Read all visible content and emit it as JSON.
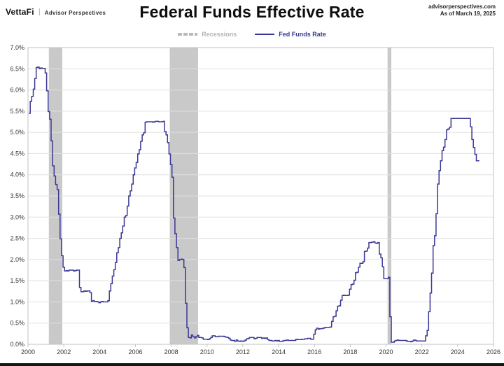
{
  "header": {
    "logo_primary": "VettaFi",
    "logo_secondary": "Advisor Perspectives",
    "title": "Federal Funds Effective Rate",
    "source_line1": "advisorperspectives.com",
    "source_line2": "As of March 19, 2025"
  },
  "legend": {
    "recessions_label": "Recessions",
    "series_label": "Fed Funds Rate"
  },
  "colors": {
    "line": "#3a3794",
    "recession_band": "#c9c9c9",
    "grid": "#e0e0e0",
    "frame": "#c2c2c2",
    "tick_text": "#333333",
    "legend_recession_text": "#b3b3b3",
    "legend_series_text": "#3a3794"
  },
  "chart_data": {
    "type": "line",
    "title": "Federal Funds Effective Rate",
    "xlabel": "",
    "ylabel": "",
    "unit": "%",
    "xlim": [
      2000,
      2026
    ],
    "ylim": [
      0,
      7
    ],
    "grid": true,
    "legend_position": "top-center",
    "x_ticks": [
      "2000",
      "2002",
      "2004",
      "2006",
      "2008",
      "2010",
      "2012",
      "2014",
      "2016",
      "2018",
      "2020",
      "2022",
      "2024",
      "2026"
    ],
    "y_ticks": [
      "7.0%",
      "6.5%",
      "6.0%",
      "5.5%",
      "5.0%",
      "4.5%",
      "4.0%",
      "3.5%",
      "3.0%",
      "2.5%",
      "2.0%",
      "1.5%",
      "1.0%",
      "0.5%",
      "0.0%"
    ],
    "recessions": [
      {
        "name": "2001 recession",
        "start": 2001.167,
        "end": 2001.917
      },
      {
        "name": "2008 recession",
        "start": 2007.917,
        "end": 2009.5
      },
      {
        "name": "2020 recession",
        "start": 2020.083,
        "end": 2020.292
      }
    ],
    "series": [
      {
        "name": "Fed Funds Rate",
        "frequency": "monthly",
        "style": "step",
        "years": [
          {
            "year": 2000,
            "monthly": [
              5.45,
              5.73,
              5.85,
              6.02,
              6.27,
              6.53,
              6.54,
              6.5,
              6.52,
              6.51,
              6.51,
              6.4
            ]
          },
          {
            "year": 2001,
            "monthly": [
              5.98,
              5.49,
              5.31,
              4.8,
              4.21,
              3.97,
              3.77,
              3.65,
              3.07,
              2.49,
              2.09,
              1.82
            ]
          },
          {
            "year": 2002,
            "monthly": [
              1.73,
              1.74,
              1.73,
              1.75,
              1.75,
              1.75,
              1.73,
              1.74,
              1.75,
              1.75,
              1.34,
              1.24
            ]
          },
          {
            "year": 2003,
            "monthly": [
              1.24,
              1.26,
              1.25,
              1.26,
              1.26,
              1.22,
              1.01,
              1.03,
              1.01,
              1.01,
              1.0,
              0.98
            ]
          },
          {
            "year": 2004,
            "monthly": [
              1.0,
              1.01,
              1.0,
              1.0,
              1.0,
              1.03,
              1.26,
              1.43,
              1.61,
              1.76,
              1.93,
              2.16
            ]
          },
          {
            "year": 2005,
            "monthly": [
              2.28,
              2.5,
              2.63,
              2.79,
              3.0,
              3.04,
              3.26,
              3.5,
              3.62,
              3.78,
              4.0,
              4.16
            ]
          },
          {
            "year": 2006,
            "monthly": [
              4.29,
              4.49,
              4.59,
              4.79,
              4.94,
              4.99,
              5.24,
              5.25,
              5.25,
              5.25,
              5.25,
              5.24
            ]
          },
          {
            "year": 2007,
            "monthly": [
              5.25,
              5.26,
              5.26,
              5.25,
              5.25,
              5.25,
              5.26,
              5.02,
              4.94,
              4.76,
              4.49,
              4.24
            ]
          },
          {
            "year": 2008,
            "monthly": [
              3.94,
              2.98,
              2.61,
              2.28,
              1.98,
              2.0,
              2.01,
              2.0,
              1.81,
              0.97,
              0.39,
              0.16
            ]
          },
          {
            "year": 2009,
            "monthly": [
              0.15,
              0.22,
              0.18,
              0.15,
              0.18,
              0.21,
              0.16,
              0.16,
              0.15,
              0.12,
              0.12,
              0.12
            ]
          },
          {
            "year": 2010,
            "monthly": [
              0.11,
              0.13,
              0.16,
              0.2,
              0.2,
              0.18,
              0.18,
              0.19,
              0.19,
              0.19,
              0.19,
              0.18
            ]
          },
          {
            "year": 2011,
            "monthly": [
              0.17,
              0.16,
              0.14,
              0.1,
              0.09,
              0.09,
              0.07,
              0.1,
              0.08,
              0.07,
              0.08,
              0.07
            ]
          },
          {
            "year": 2012,
            "monthly": [
              0.08,
              0.1,
              0.13,
              0.14,
              0.16,
              0.16,
              0.16,
              0.13,
              0.14,
              0.16,
              0.16,
              0.16
            ]
          },
          {
            "year": 2013,
            "monthly": [
              0.14,
              0.15,
              0.14,
              0.15,
              0.11,
              0.09,
              0.09,
              0.08,
              0.08,
              0.09,
              0.08,
              0.09
            ]
          },
          {
            "year": 2014,
            "monthly": [
              0.07,
              0.07,
              0.08,
              0.09,
              0.09,
              0.1,
              0.09,
              0.09,
              0.09,
              0.09,
              0.09,
              0.12
            ]
          },
          {
            "year": 2015,
            "monthly": [
              0.11,
              0.11,
              0.11,
              0.12,
              0.12,
              0.13,
              0.13,
              0.14,
              0.14,
              0.12,
              0.12,
              0.24
            ]
          },
          {
            "year": 2016,
            "monthly": [
              0.34,
              0.38,
              0.36,
              0.37,
              0.37,
              0.38,
              0.39,
              0.4,
              0.4,
              0.4,
              0.41,
              0.54
            ]
          },
          {
            "year": 2017,
            "monthly": [
              0.65,
              0.66,
              0.79,
              0.9,
              0.91,
              1.04,
              1.15,
              1.16,
              1.15,
              1.15,
              1.16,
              1.3
            ]
          },
          {
            "year": 2018,
            "monthly": [
              1.41,
              1.42,
              1.51,
              1.69,
              1.7,
              1.82,
              1.91,
              1.91,
              1.95,
              2.19,
              2.2,
              2.27
            ]
          },
          {
            "year": 2019,
            "monthly": [
              2.4,
              2.4,
              2.41,
              2.42,
              2.39,
              2.38,
              2.4,
              2.13,
              2.04,
              1.83,
              1.55,
              1.55
            ]
          },
          {
            "year": 2020,
            "monthly": [
              1.55,
              1.58,
              0.65,
              0.05,
              0.05,
              0.08,
              0.09,
              0.1,
              0.09,
              0.09,
              0.09,
              0.09
            ]
          },
          {
            "year": 2021,
            "monthly": [
              0.09,
              0.08,
              0.07,
              0.07,
              0.06,
              0.08,
              0.1,
              0.09,
              0.08,
              0.08,
              0.08,
              0.08
            ]
          },
          {
            "year": 2022,
            "monthly": [
              0.08,
              0.08,
              0.2,
              0.33,
              0.77,
              1.21,
              1.68,
              2.33,
              2.56,
              3.08,
              3.78,
              4.1
            ]
          },
          {
            "year": 2023,
            "monthly": [
              4.33,
              4.57,
              4.65,
              4.83,
              5.06,
              5.08,
              5.12,
              5.33,
              5.33,
              5.33,
              5.33,
              5.33
            ]
          },
          {
            "year": 2024,
            "monthly": [
              5.33,
              5.33,
              5.33,
              5.33,
              5.33,
              5.33,
              5.33,
              5.33,
              5.13,
              4.83,
              4.64,
              4.48
            ]
          },
          {
            "year": 2025,
            "monthly": [
              4.33,
              4.33,
              4.33
            ]
          }
        ]
      }
    ]
  }
}
